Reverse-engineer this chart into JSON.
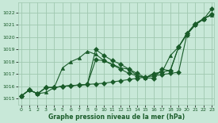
{
  "xlabel": "Graphe pression niveau de la mer (hPa)",
  "bg_color": "#c8e8d8",
  "grid_color": "#a0c8b0",
  "line_color": "#1a5c2a",
  "ylim": [
    1014.5,
    1022.8
  ],
  "xlim": [
    -0.3,
    23.3
  ],
  "yticks": [
    1015,
    1016,
    1017,
    1018,
    1019,
    1020,
    1021,
    1022
  ],
  "xticks": [
    0,
    1,
    2,
    3,
    4,
    5,
    6,
    7,
    8,
    9,
    10,
    11,
    12,
    13,
    14,
    15,
    16,
    17,
    18,
    19,
    20,
    21,
    22,
    23
  ],
  "series": [
    [
      1015.2,
      1015.7,
      1015.4,
      1015.5,
      1015.9,
      1017.5,
      1018.0,
      1018.3,
      1018.85,
      1018.6,
      1018.1,
      1017.8,
      1017.5,
      1017.4,
      1016.85,
      1016.7,
      1017.05,
      1017.15,
      1018.5,
      1019.2,
      1020.2,
      1021.0,
      1021.5,
      1021.8
    ],
    [
      1015.2,
      1015.7,
      1015.4,
      1015.9,
      1015.9,
      1016.0,
      1016.05,
      1016.1,
      1016.15,
      1018.15,
      1018.1,
      1017.75,
      1017.4,
      1017.05,
      1016.85,
      1016.7,
      1017.0,
      1017.15,
      1017.3,
      1019.2,
      1020.3,
      1021.1,
      1021.5,
      1021.85
    ],
    [
      1015.2,
      1015.7,
      1015.4,
      1015.9,
      1015.9,
      1016.0,
      1016.05,
      1016.1,
      1016.15,
      1019.0,
      1018.5,
      1018.1,
      1017.8,
      1017.4,
      1017.05,
      1016.7,
      1016.65,
      1017.4,
      1017.25,
      1019.2,
      1020.3,
      1021.0,
      1021.5,
      1021.85
    ],
    [
      1015.2,
      1015.7,
      1015.4,
      1015.9,
      1015.9,
      1016.0,
      1016.05,
      1016.1,
      1016.15,
      1016.2,
      1016.25,
      1016.35,
      1016.45,
      1016.55,
      1016.65,
      1016.75,
      1016.85,
      1016.95,
      1017.05,
      1017.15,
      1020.2,
      1021.0,
      1021.45,
      1022.3
    ]
  ],
  "markers": [
    "^",
    "D",
    "D",
    "D"
  ],
  "marker_sizes": [
    3,
    3,
    3,
    3
  ],
  "linewidth": 0.8
}
